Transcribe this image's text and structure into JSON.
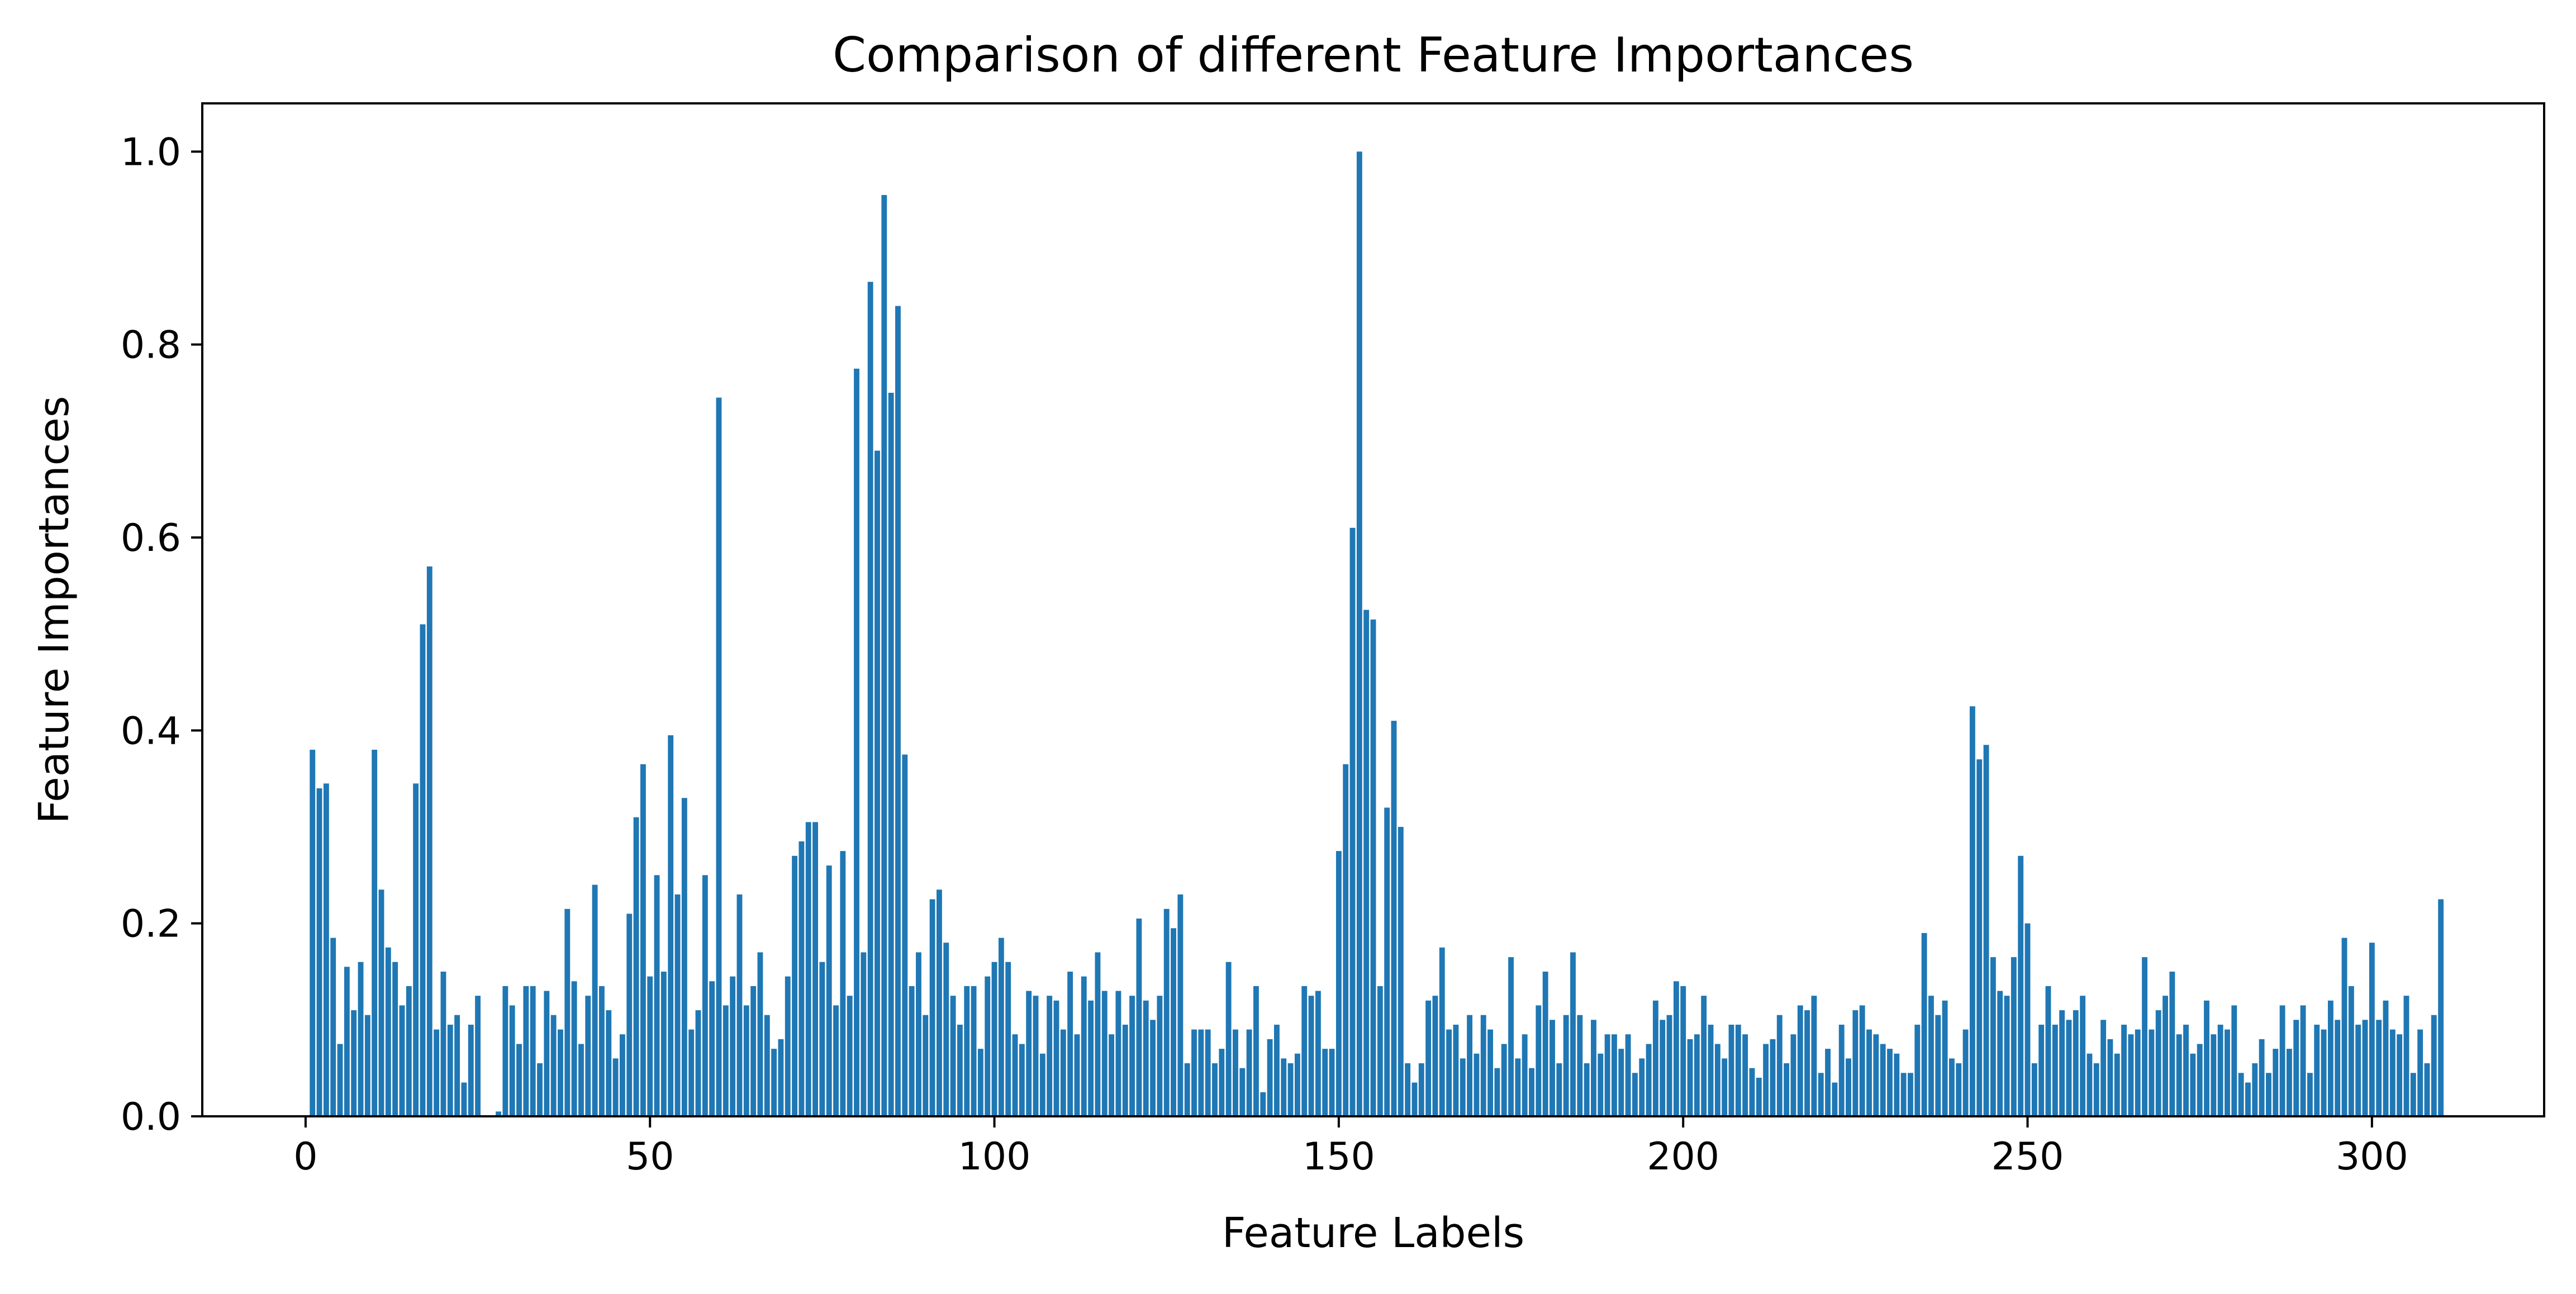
{
  "chart_data": {
    "type": "bar",
    "title": "Comparison of different Feature Importances",
    "xlabel": "Feature Labels",
    "ylabel": "Feature Importances",
    "xlim": [
      -15,
      325
    ],
    "ylim": [
      0,
      1.05
    ],
    "xticks": [
      0,
      50,
      100,
      150,
      200,
      250,
      300
    ],
    "yticks": [
      0.0,
      0.2,
      0.4,
      0.6,
      0.8,
      1.0
    ],
    "ytick_labels": [
      "0.0",
      "0.2",
      "0.4",
      "0.6",
      "0.8",
      "1.0"
    ],
    "grid": false,
    "bar_color": "#1f77b4",
    "x_start": 1,
    "values": [
      0.38,
      0.34,
      0.345,
      0.185,
      0.075,
      0.155,
      0.11,
      0.16,
      0.105,
      0.38,
      0.235,
      0.175,
      0.16,
      0.115,
      0.135,
      0.345,
      0.51,
      0.57,
      0.09,
      0.15,
      0.095,
      0.105,
      0.035,
      0.095,
      0.125,
      0.0,
      0.0,
      0.005,
      0.135,
      0.115,
      0.075,
      0.135,
      0.135,
      0.055,
      0.13,
      0.105,
      0.09,
      0.215,
      0.14,
      0.075,
      0.125,
      0.24,
      0.135,
      0.11,
      0.06,
      0.085,
      0.21,
      0.31,
      0.365,
      0.145,
      0.25,
      0.15,
      0.395,
      0.23,
      0.33,
      0.09,
      0.11,
      0.25,
      0.14,
      0.745,
      0.115,
      0.145,
      0.23,
      0.115,
      0.135,
      0.17,
      0.105,
      0.07,
      0.08,
      0.145,
      0.27,
      0.285,
      0.305,
      0.305,
      0.16,
      0.26,
      0.115,
      0.275,
      0.125,
      0.775,
      0.17,
      0.865,
      0.69,
      0.955,
      0.75,
      0.84,
      0.375,
      0.135,
      0.17,
      0.105,
      0.225,
      0.235,
      0.18,
      0.125,
      0.095,
      0.135,
      0.135,
      0.07,
      0.145,
      0.16,
      0.185,
      0.16,
      0.085,
      0.075,
      0.13,
      0.125,
      0.065,
      0.125,
      0.12,
      0.09,
      0.15,
      0.085,
      0.145,
      0.12,
      0.17,
      0.13,
      0.085,
      0.13,
      0.095,
      0.125,
      0.205,
      0.12,
      0.1,
      0.125,
      0.215,
      0.195,
      0.23,
      0.055,
      0.09,
      0.09,
      0.09,
      0.055,
      0.07,
      0.16,
      0.09,
      0.05,
      0.09,
      0.135,
      0.025,
      0.08,
      0.095,
      0.06,
      0.055,
      0.065,
      0.135,
      0.125,
      0.13,
      0.07,
      0.07,
      0.275,
      0.365,
      0.61,
      1.0,
      0.525,
      0.515,
      0.135,
      0.32,
      0.41,
      0.3,
      0.055,
      0.035,
      0.055,
      0.12,
      0.125,
      0.175,
      0.09,
      0.095,
      0.06,
      0.105,
      0.065,
      0.105,
      0.09,
      0.05,
      0.075,
      0.165,
      0.06,
      0.085,
      0.05,
      0.115,
      0.15,
      0.1,
      0.055,
      0.105,
      0.17,
      0.105,
      0.055,
      0.1,
      0.065,
      0.085,
      0.085,
      0.07,
      0.085,
      0.045,
      0.06,
      0.075,
      0.12,
      0.1,
      0.105,
      0.14,
      0.135,
      0.08,
      0.085,
      0.125,
      0.095,
      0.075,
      0.06,
      0.095,
      0.095,
      0.085,
      0.05,
      0.04,
      0.075,
      0.08,
      0.105,
      0.055,
      0.085,
      0.115,
      0.11,
      0.125,
      0.045,
      0.07,
      0.035,
      0.095,
      0.06,
      0.11,
      0.115,
      0.09,
      0.085,
      0.075,
      0.07,
      0.065,
      0.045,
      0.045,
      0.095,
      0.19,
      0.125,
      0.105,
      0.12,
      0.06,
      0.055,
      0.09,
      0.425,
      0.37,
      0.385,
      0.165,
      0.13,
      0.125,
      0.165,
      0.27,
      0.2,
      0.055,
      0.095,
      0.135,
      0.095,
      0.11,
      0.1,
      0.11,
      0.125,
      0.065,
      0.055,
      0.1,
      0.08,
      0.065,
      0.095,
      0.085,
      0.09,
      0.165,
      0.09,
      0.11,
      0.125,
      0.15,
      0.085,
      0.095,
      0.065,
      0.075,
      0.12,
      0.085,
      0.095,
      0.09,
      0.115,
      0.045,
      0.035,
      0.055,
      0.08,
      0.045,
      0.07,
      0.115,
      0.07,
      0.1,
      0.115,
      0.045,
      0.095,
      0.09,
      0.12,
      0.1,
      0.185,
      0.135,
      0.095,
      0.1,
      0.18,
      0.1,
      0.12,
      0.09,
      0.085,
      0.125,
      0.045,
      0.09,
      0.055,
      0.105,
      0.225
    ]
  }
}
